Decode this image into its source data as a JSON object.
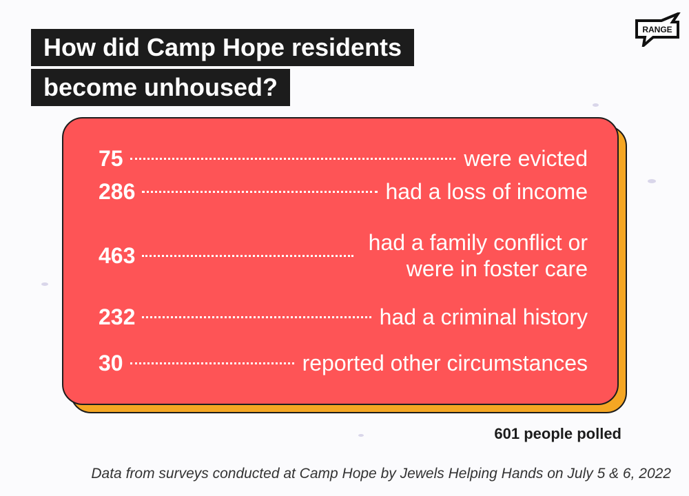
{
  "title": {
    "line1": "How did Camp Hope residents",
    "line2": "become unhoused?"
  },
  "logo": "RANGE",
  "rows": [
    {
      "value": "75",
      "label": "were evicted"
    },
    {
      "value": "286",
      "label": "had a loss of income"
    },
    {
      "value": "463",
      "label_line1": "had a family conflict or",
      "label_line2": "were in foster care"
    },
    {
      "value": "232",
      "label": "had a criminal history"
    },
    {
      "value": "30",
      "label": "reported other circumstances"
    }
  ],
  "total": "601 people polled",
  "source": "Data from surveys conducted at Camp Hope by Jewels Helping Hands on July 5 & 6, 2022",
  "colors": {
    "card": "#fe5456",
    "shadow": "#f5a623",
    "title_bg": "#1c1c1c"
  }
}
